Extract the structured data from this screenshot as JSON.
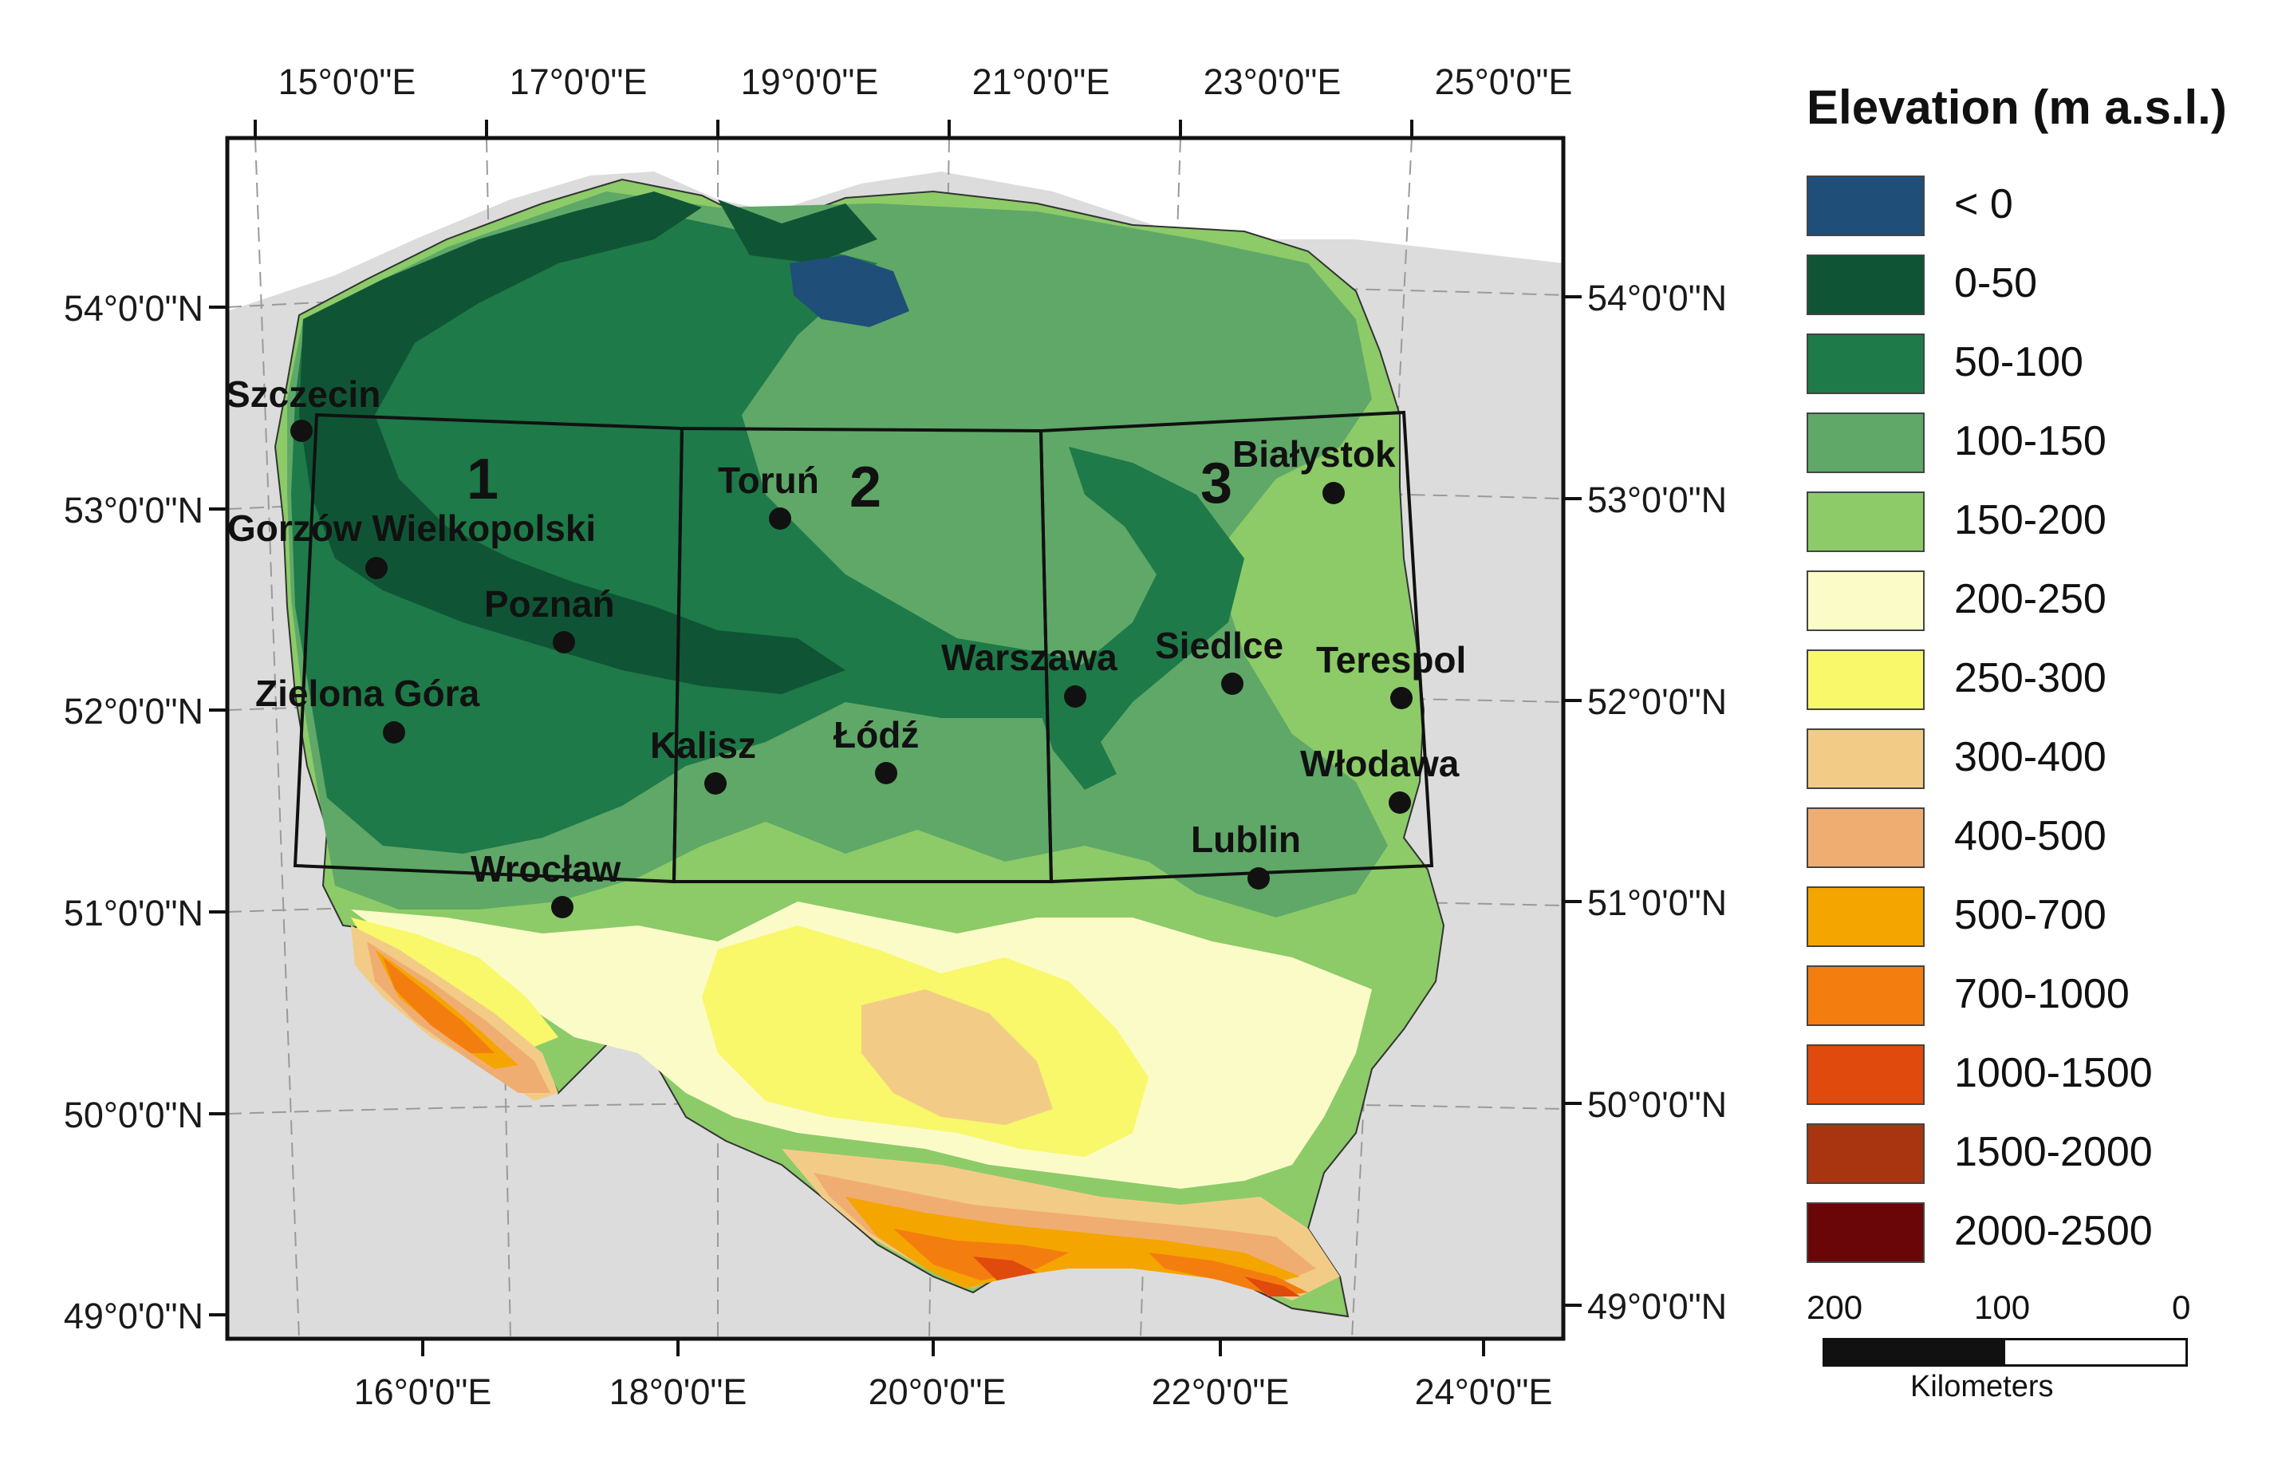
{
  "legend": {
    "title": "Elevation (m a.s.l.)",
    "items": [
      {
        "label": "< 0",
        "color": "#1f4e79"
      },
      {
        "label": "0-50",
        "color": "#0f5535"
      },
      {
        "label": "50-100",
        "color": "#1e7a48"
      },
      {
        "label": "100-150",
        "color": "#5fa868"
      },
      {
        "label": "150-200",
        "color": "#8ccb68"
      },
      {
        "label": "200-250",
        "color": "#fbfbc8"
      },
      {
        "label": "250-300",
        "color": "#f8f86a"
      },
      {
        "label": "300-400",
        "color": "#f2cc86"
      },
      {
        "label": "400-500",
        "color": "#f0ad72"
      },
      {
        "label": "500-700",
        "color": "#f5a500"
      },
      {
        "label": "700-1000",
        "color": "#f47d10"
      },
      {
        "label": "1000-1500",
        "color": "#e04a0c"
      },
      {
        "label": "1500-2000",
        "color": "#a83410"
      },
      {
        "label": "2000-2500",
        "color": "#6a0608"
      }
    ]
  },
  "axes": {
    "top_lon": [
      "15°0'0\"E",
      "17°0'0\"E",
      "19°0'0\"E",
      "21°0'0\"E",
      "23°0'0\"E",
      "25°0'0\"E"
    ],
    "bottom_lon": [
      "16°0'0\"E",
      "18°0'0\"E",
      "20°0'0\"E",
      "22°0'0\"E",
      "24°0'0\"E"
    ],
    "left_lat": [
      "54°0'0\"N",
      "53°0'0\"N",
      "52°0'0\"N",
      "51°0'0\"N",
      "50°0'0\"N",
      "49°0'0\"N"
    ],
    "right_lat": [
      "54°0'0\"N",
      "53°0'0\"N",
      "52°0'0\"N",
      "51°0'0\"N",
      "50°0'0\"N",
      "49°0'0\"N"
    ]
  },
  "cities": [
    {
      "name": "Szczecin"
    },
    {
      "name": "Gorzów Wielkopolski"
    },
    {
      "name": "Poznań"
    },
    {
      "name": "Zielona Góra"
    },
    {
      "name": "Toruń"
    },
    {
      "name": "Kalisz"
    },
    {
      "name": "Łódź"
    },
    {
      "name": "Wrocław"
    },
    {
      "name": "Warszawa"
    },
    {
      "name": "Siedlce"
    },
    {
      "name": "Białystok"
    },
    {
      "name": "Terespol"
    },
    {
      "name": "Włodawa"
    },
    {
      "name": "Lublin"
    }
  ],
  "regions": [
    "1",
    "2",
    "3"
  ],
  "scalebar": {
    "ticks": [
      "200",
      "100",
      "0"
    ],
    "unit": "Kilometers"
  }
}
